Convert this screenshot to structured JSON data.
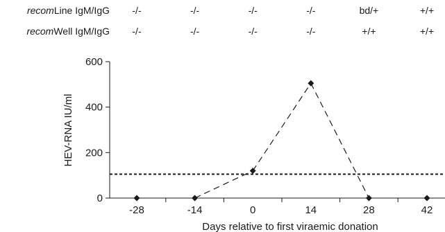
{
  "serology": {
    "rows": [
      {
        "label_italic": "recom",
        "label_rest": "Line IgM/IgG",
        "values": [
          "-/-",
          "-/-",
          "-/-",
          "-/-",
          "bd/+",
          "+/+"
        ]
      },
      {
        "label_italic": "recom",
        "label_rest": "Well IgM/IgG",
        "values": [
          "-/-",
          "-/-",
          "-/-",
          "-/-",
          "+/+",
          "+/+"
        ]
      }
    ]
  },
  "chart_data": {
    "type": "line",
    "x": [
      -28,
      -14,
      0,
      14,
      28,
      42
    ],
    "series": [
      {
        "values": [
          0,
          0,
          120,
          505,
          0,
          0
        ]
      }
    ],
    "threshold": 105,
    "xlabel": "Days relative to first viraemic donation",
    "ylabel": "HEV-RNA IU/ml",
    "ylim": [
      0,
      600
    ],
    "yticks": [
      0,
      200,
      400,
      600
    ],
    "xticks": [
      "-28",
      "-14",
      "0",
      "14",
      "28",
      "42"
    ],
    "grid": false,
    "legend": "none"
  },
  "colors": {
    "ink": "#1a1a1a"
  }
}
